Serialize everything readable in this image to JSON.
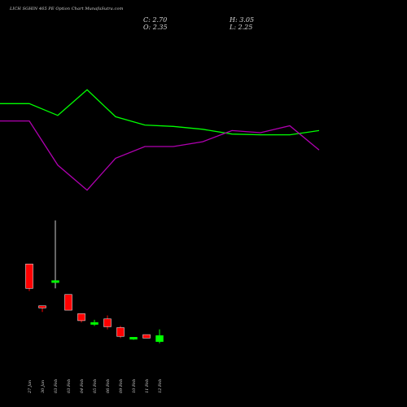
{
  "header": {
    "title": "LICH          SGHIN 465 PE Option Chart MunafaSutra.com",
    "close": "C: 2.70",
    "open": "O: 2.35",
    "high": "H: 3.05",
    "low": "L: 2.25"
  },
  "colors": {
    "background": "#000000",
    "up": "#00ff00",
    "down": "#ff0000",
    "line_green": "#00ff00",
    "line_magenta": "#b000b0",
    "text": "#d8d8d8"
  },
  "chart_data": {
    "type": "candlestick",
    "categories": [
      "27 Jan",
      "30 Jan",
      "03 Feb",
      "03 Feb",
      "04 Feb",
      "05 Feb",
      "06 Feb",
      "09 Feb",
      "10 Feb",
      "11 Feb",
      "12 Feb"
    ],
    "candles": [
      {
        "open": 6.8,
        "high": 6.8,
        "low": 5.25,
        "close": 5.4,
        "dir": "down"
      },
      {
        "open": 4.4,
        "high": 4.4,
        "low": 4.05,
        "close": 4.3,
        "dir": "down"
      },
      {
        "open": 5.75,
        "high": 9.3,
        "low": 5.4,
        "close": 5.85,
        "dir": "up"
      },
      {
        "open": 5.05,
        "high": 5.05,
        "low": 4.15,
        "close": 4.15,
        "dir": "down"
      },
      {
        "open": 3.95,
        "high": 3.95,
        "low": 3.45,
        "close": 3.55,
        "dir": "down"
      },
      {
        "open": 3.35,
        "high": 3.6,
        "low": 3.25,
        "close": 3.45,
        "dir": "up"
      },
      {
        "open": 3.65,
        "high": 3.85,
        "low": 3.05,
        "close": 3.2,
        "dir": "down"
      },
      {
        "open": 3.15,
        "high": 3.25,
        "low": 2.55,
        "close": 2.65,
        "dir": "down"
      },
      {
        "open": 2.5,
        "high": 2.6,
        "low": 2.45,
        "close": 2.6,
        "dir": "up"
      },
      {
        "open": 2.75,
        "high": 2.75,
        "low": 2.55,
        "close": 2.55,
        "dir": "down"
      },
      {
        "open": 2.35,
        "high": 3.05,
        "low": 2.25,
        "close": 2.7,
        "dir": "up"
      }
    ],
    "price_range": [
      1.4,
      9.8
    ],
    "line_green": [
      0.62,
      0.62,
      0.45,
      0.82,
      0.43,
      0.31,
      0.29,
      0.25,
      0.18,
      0.17,
      0.17,
      0.23
    ],
    "line_magenta": [
      0.37,
      0.37,
      -0.27,
      -0.63,
      -0.17,
      0.0,
      0.0,
      0.07,
      0.23,
      0.2,
      0.3,
      -0.05
    ],
    "line_range": [
      -1.0,
      1.0
    ]
  }
}
